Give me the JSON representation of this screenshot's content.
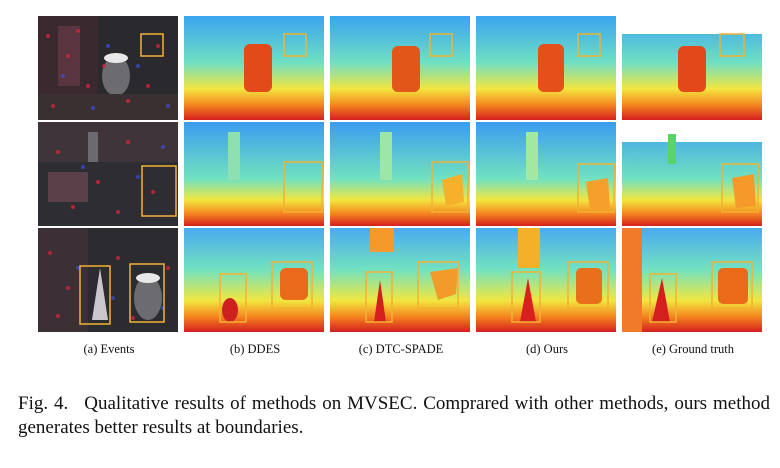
{
  "columns": [
    {
      "id": "events",
      "label": "(a) Events"
    },
    {
      "id": "ddes",
      "label": "(b) DDES"
    },
    {
      "id": "dtc",
      "label": "(c) DTC-SPADE"
    },
    {
      "id": "ours",
      "label": "(d) Ours"
    },
    {
      "id": "gt",
      "label": "(e) Ground truth"
    }
  ],
  "rows": 3,
  "highlight_color": "#f2b233",
  "caption": {
    "figure": "Fig. 4.",
    "text": "Qualitative results of methods on MVSEC. Comprared with other methods, ours method generates better results at boundaries."
  }
}
